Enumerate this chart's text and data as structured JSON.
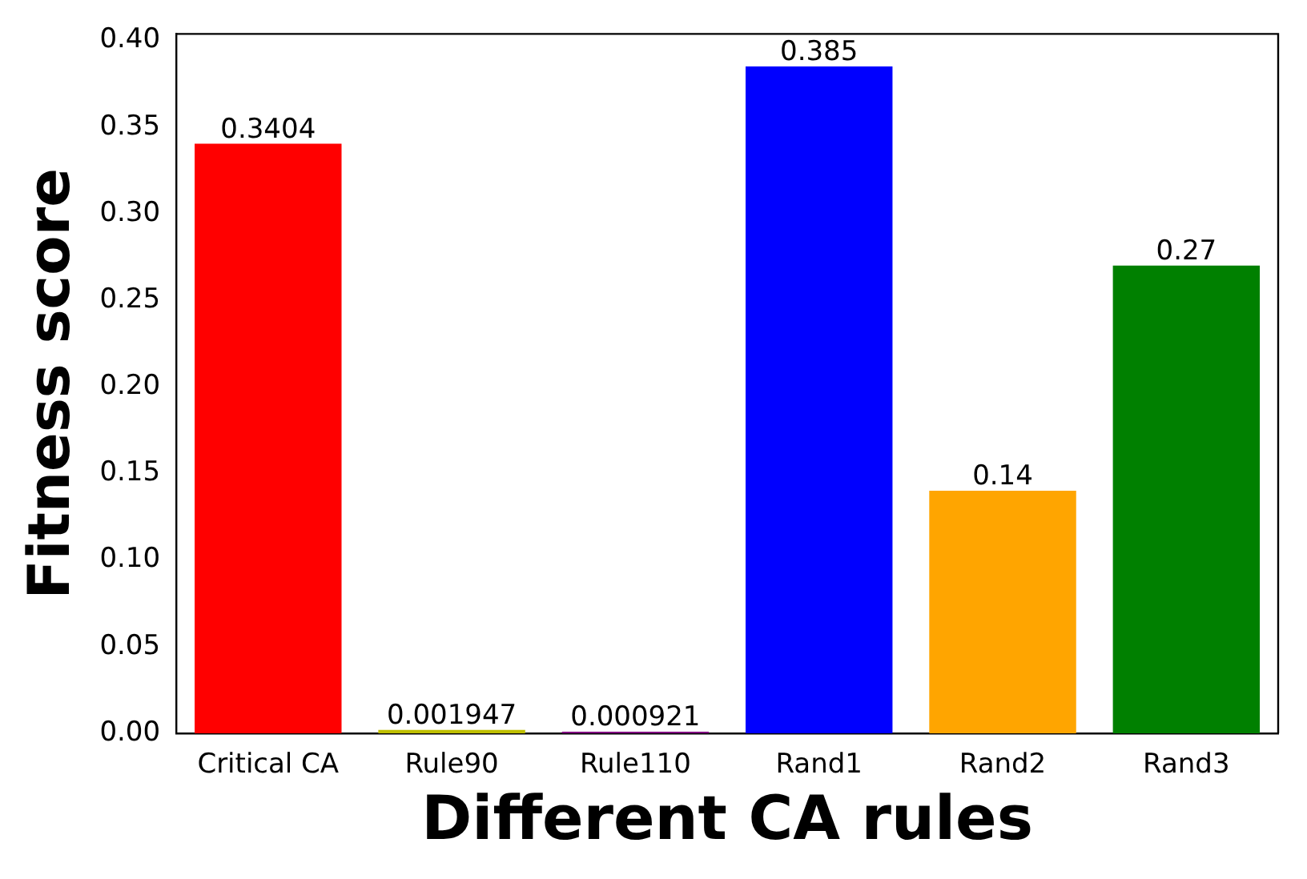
{
  "chart_data": {
    "type": "bar",
    "xlabel": "Different CA rules",
    "ylabel": "Fitness score",
    "categories": [
      "Critical CA",
      "Rule90",
      "Rule110",
      "Rand1",
      "Rand2",
      "Rand3"
    ],
    "values": [
      0.3404,
      0.001947,
      0.000921,
      0.385,
      0.14,
      0.27
    ],
    "colors": [
      "#ff0000",
      "#bfbf00",
      "#800080",
      "#0000ff",
      "#ffa500",
      "#008000"
    ],
    "ylim": [
      0,
      0.4038
    ],
    "yticks": [
      {
        "value": 0,
        "label": "0.00"
      },
      {
        "value": 0.05,
        "label": "0.05"
      },
      {
        "value": 0.1,
        "label": "0.10"
      },
      {
        "value": 0.15,
        "label": "0.15"
      },
      {
        "value": 0.2,
        "label": "0.20"
      },
      {
        "value": 0.25,
        "label": "0.25"
      },
      {
        "value": 0.3,
        "label": "0.30"
      },
      {
        "value": 0.35,
        "label": "0.35"
      },
      {
        "value": 0.4,
        "label": "0.40"
      }
    ],
    "data_labels": true,
    "grid": false,
    "legend": false
  }
}
